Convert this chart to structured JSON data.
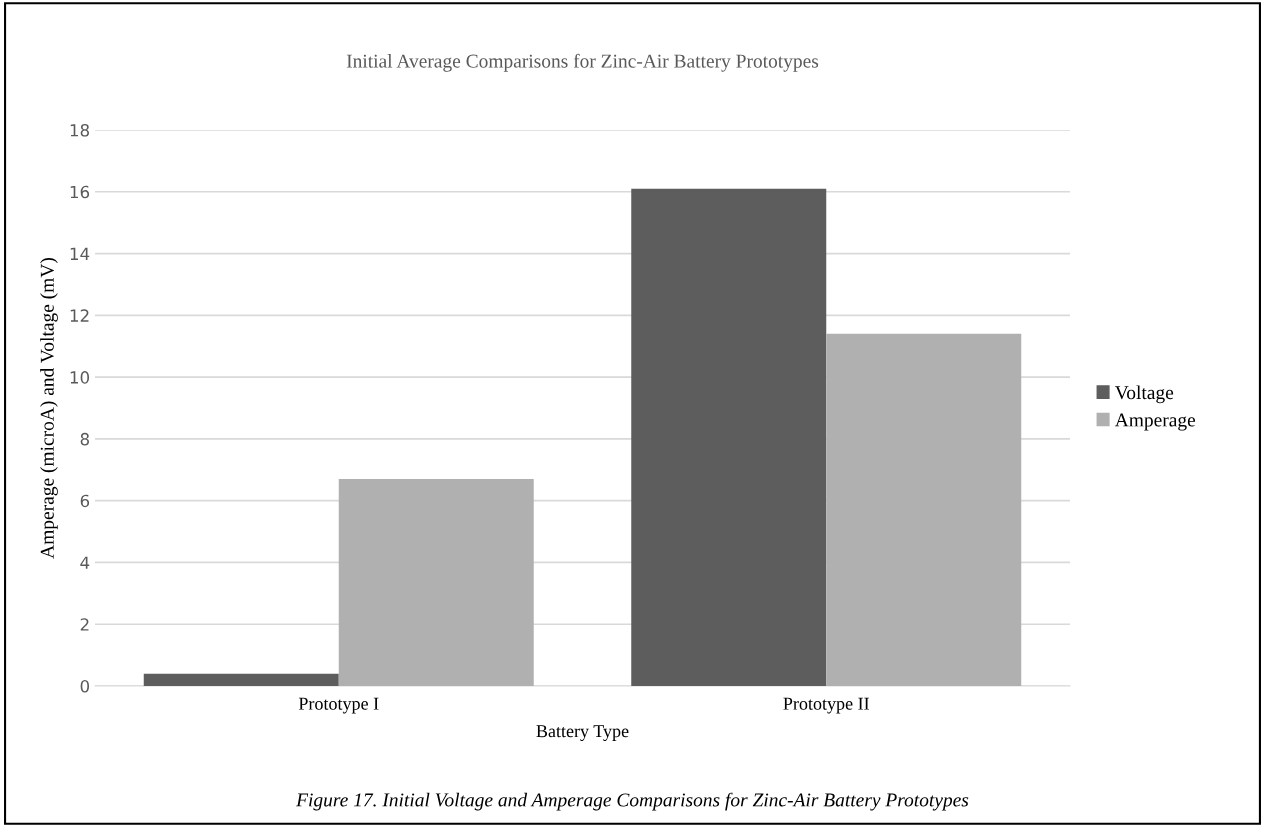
{
  "chart_data": {
    "type": "bar",
    "title": "Initial Average Comparisons for Zinc-Air Battery Prototypes",
    "xlabel": "Battery Type",
    "ylabel": "Amperage (microA) and Voltage (mV)",
    "categories": [
      "Prototype I",
      "Prototype II"
    ],
    "series": [
      {
        "name": "Voltage",
        "color": "#5d5d5d",
        "values": [
          0.4,
          16.1
        ]
      },
      {
        "name": "Amperage",
        "color": "#b0b0b0",
        "values": [
          6.7,
          11.4
        ]
      }
    ],
    "ylim": [
      0,
      18
    ],
    "yticks": [
      0,
      2,
      4,
      6,
      8,
      10,
      12,
      14,
      16,
      18
    ],
    "grid": "y",
    "legend": "right",
    "annotations": [
      "Figure 17. Initial Voltage and Amperage Comparisons for Zinc-Air Battery Prototypes"
    ]
  }
}
